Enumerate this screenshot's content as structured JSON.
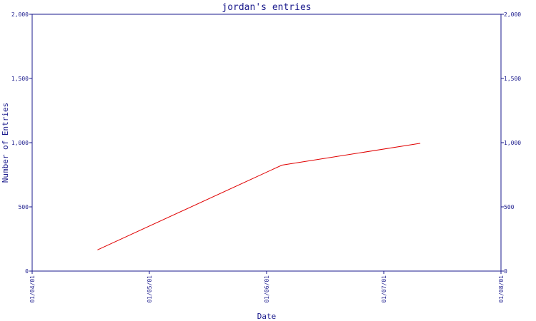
{
  "chart_data": {
    "type": "line",
    "title": "jordan's entries",
    "xlabel": "Date",
    "ylabel": "Number of Entries",
    "x_ticks": [
      "01/04/01",
      "01/05/01",
      "01/06/01",
      "01/07/01",
      "01/08/01"
    ],
    "y_ticks": [
      "0",
      "500",
      "1,000",
      "1,500",
      "2,000"
    ],
    "y_ticks_right": [
      "0",
      "500",
      "1,000",
      "1,500",
      "2,000"
    ],
    "ylim": [
      0,
      2000
    ],
    "xlim": [
      "2001-04-01",
      "2001-08-01"
    ],
    "series": [
      {
        "x": [
          "2001-04-18",
          "2001-06-05",
          "2001-07-11"
        ],
        "y": [
          165,
          825,
          995
        ]
      }
    ],
    "colors": {
      "axis": "#1a1a8c",
      "line": "#e00000"
    }
  }
}
